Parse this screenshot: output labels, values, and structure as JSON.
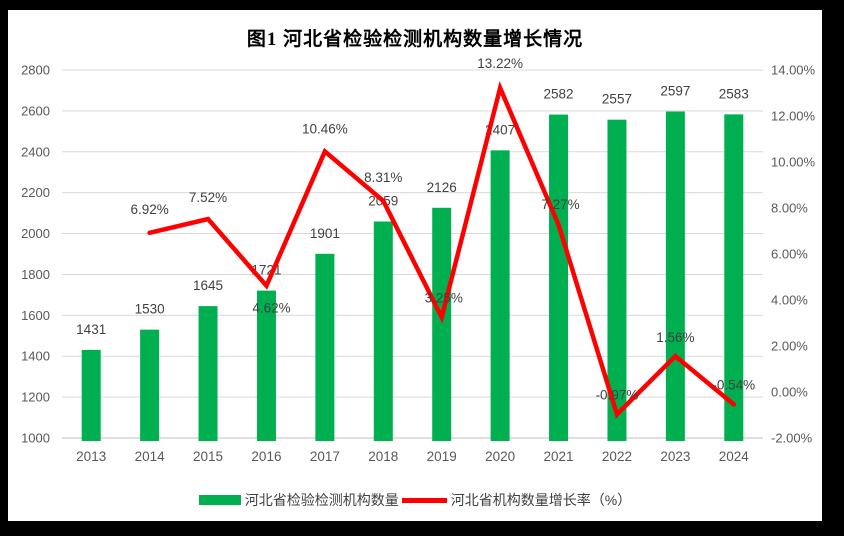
{
  "page": {
    "background": "#000000",
    "panel_background": "#ffffff"
  },
  "chart": {
    "title": "图1  河北省检验检测机构数量增长情况",
    "legend": {
      "items": [
        {
          "label": "河北省检验检测机构数量",
          "swatch": "bar",
          "color": "#00B050"
        },
        {
          "label": "河北省机构数量增长率（%）",
          "swatch": "line",
          "color": "#FF0000"
        }
      ],
      "position": "bottom"
    },
    "colors": {
      "bar": "#00B050",
      "line": "#FF0000",
      "gridline": "#D9D9D9",
      "axis_line": "#BFBFBF",
      "tick_label": "#595959",
      "data_label": "#404040"
    }
  },
  "chart_data": {
    "type": "bar",
    "subtype": "combo-bar-line",
    "title": "图1  河北省检验检测机构数量增长情况",
    "xlabel": "",
    "ylabel": "",
    "categories": [
      "2013",
      "2014",
      "2015",
      "2016",
      "2017",
      "2018",
      "2019",
      "2020",
      "2021",
      "2022",
      "2023",
      "2024"
    ],
    "series": [
      {
        "name": "河北省检验检测机构数量",
        "type": "bar",
        "axis": "left",
        "color": "#00B050",
        "values": [
          1431,
          1530,
          1645,
          1721,
          1901,
          2059,
          2126,
          2407,
          2582,
          2557,
          2597,
          2583
        ],
        "labels": [
          "1431",
          "1530",
          "1645",
          "1721",
          "1901",
          "2059",
          "2126",
          "2407",
          "2582",
          "2557",
          "2597",
          "2583"
        ]
      },
      {
        "name": "河北省机构数量增长率（%）",
        "type": "line",
        "axis": "right",
        "color": "#FF0000",
        "values": [
          null,
          6.92,
          7.52,
          4.62,
          10.46,
          8.31,
          3.25,
          13.22,
          7.27,
          -0.97,
          1.56,
          -0.54
        ],
        "labels": [
          null,
          "6.92%",
          "7.52%",
          "4.62%",
          "10.46%",
          "8.31%",
          "3.25%",
          "13.22%",
          "7.27%",
          "-0.97%",
          "1.56%",
          "-0.54%"
        ]
      }
    ],
    "left_axis": {
      "min": 1000,
      "max": 2800,
      "step": 200,
      "ticks": [
        "1000",
        "1200",
        "1400",
        "1600",
        "1800",
        "2000",
        "2200",
        "2400",
        "2600",
        "2800"
      ]
    },
    "right_axis": {
      "min": -2,
      "max": 14,
      "step": 2,
      "ticks": [
        "-2.00%",
        "0.00%",
        "2.00%",
        "4.00%",
        "6.00%",
        "8.00%",
        "10.00%",
        "12.00%",
        "14.00%"
      ]
    },
    "grid": true,
    "legend_position": "bottom"
  }
}
